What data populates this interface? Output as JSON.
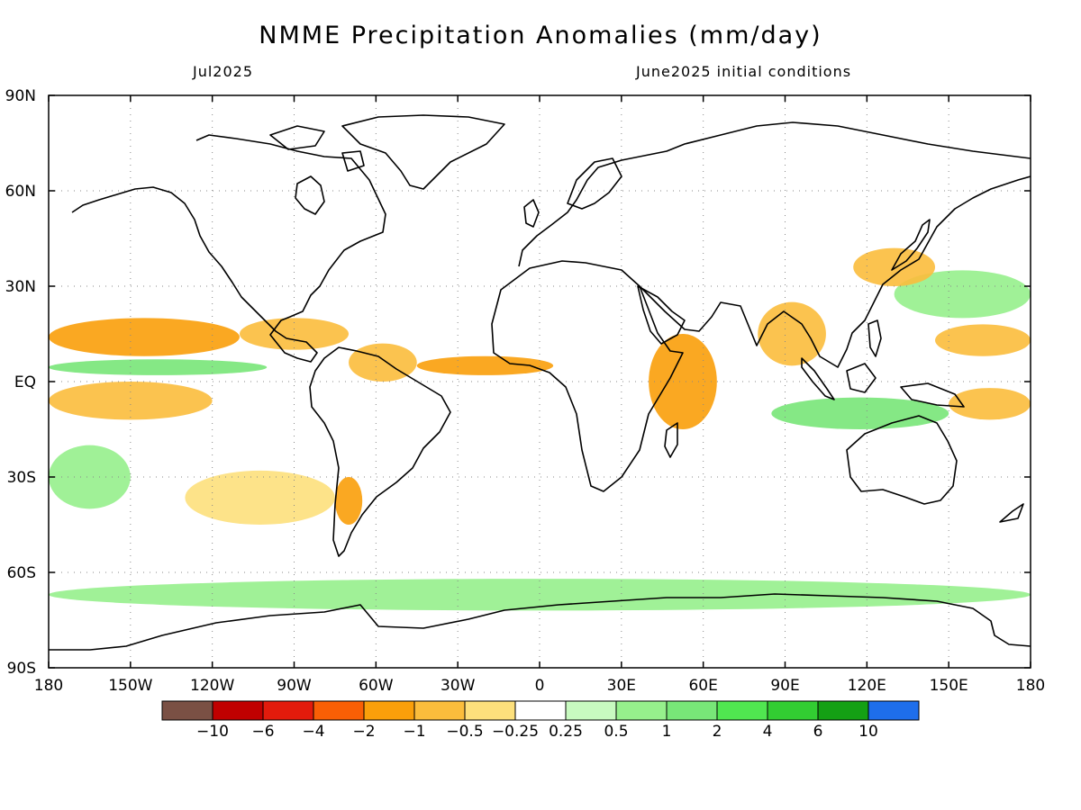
{
  "header": {
    "title": "NMME Precipitation Anomalies (mm/day)",
    "subtitle_left": "Jul2025",
    "subtitle_right": "June2025 initial conditions"
  },
  "map": {
    "lon_range": [
      -180,
      180
    ],
    "lat_range": [
      -90,
      90
    ],
    "x_ticks": [
      {
        "value": -180,
        "label": "180"
      },
      {
        "value": -150,
        "label": "150W"
      },
      {
        "value": -120,
        "label": "120W"
      },
      {
        "value": -90,
        "label": "90W"
      },
      {
        "value": -60,
        "label": "60W"
      },
      {
        "value": -30,
        "label": "30W"
      },
      {
        "value": 0,
        "label": "0"
      },
      {
        "value": 30,
        "label": "30E"
      },
      {
        "value": 60,
        "label": "60E"
      },
      {
        "value": 90,
        "label": "90E"
      },
      {
        "value": 120,
        "label": "120E"
      },
      {
        "value": 150,
        "label": "150E"
      },
      {
        "value": 180,
        "label": "180"
      }
    ],
    "y_ticks": [
      {
        "value": 90,
        "label": "90N"
      },
      {
        "value": 60,
        "label": "60N"
      },
      {
        "value": 30,
        "label": "30N"
      },
      {
        "value": 0,
        "label": "EQ"
      },
      {
        "value": -30,
        "label": "30S"
      },
      {
        "value": -60,
        "label": "60S"
      },
      {
        "value": -90,
        "label": "90S"
      }
    ],
    "grid": "dotted"
  },
  "colorbar": {
    "colors": [
      "#7a5044",
      "#c00000",
      "#e21b0c",
      "#f95f05",
      "#fa9f0a",
      "#fbbd3c",
      "#fde07c",
      "#ffffff",
      "#c8fac0",
      "#96f08c",
      "#78e678",
      "#50e650",
      "#32cd32",
      "#14a014",
      "#1e6eeb"
    ],
    "labels": [
      "-10",
      "-6",
      "-4",
      "-2",
      "-1",
      "-0.5",
      "-0.25",
      "0.25",
      "0.5",
      "1",
      "2",
      "4",
      "6",
      "10"
    ]
  },
  "chart_data": {
    "type": "heatmap",
    "title": "NMME Precipitation Anomalies (mm/day)",
    "variable": "Precipitation Anomalies (mm/day)",
    "legend_placement": "bottom",
    "levels": [
      -10,
      -6,
      -4,
      -2,
      -1,
      -0.5,
      -0.25,
      0.25,
      0.5,
      1,
      2,
      4,
      6,
      10
    ],
    "regions": [
      {
        "lon": [
          -180,
          -110
        ],
        "lat": [
          8,
          20
        ],
        "level": -2
      },
      {
        "lon": [
          -110,
          -70
        ],
        "lat": [
          10,
          20
        ],
        "level": -1
      },
      {
        "lon": [
          -180,
          -120
        ],
        "lat": [
          -12,
          0
        ],
        "level": -1
      },
      {
        "lon": [
          -180,
          -100
        ],
        "lat": [
          2,
          7
        ],
        "level": 1
      },
      {
        "lon": [
          -70,
          -45
        ],
        "lat": [
          0,
          12
        ],
        "level": -1
      },
      {
        "lon": [
          -45,
          5
        ],
        "lat": [
          2,
          8
        ],
        "level": -2
      },
      {
        "lon": [
          40,
          65
        ],
        "lat": [
          -15,
          15
        ],
        "level": -2
      },
      {
        "lon": [
          80,
          105
        ],
        "lat": [
          5,
          25
        ],
        "level": -1
      },
      {
        "lon": [
          145,
          180
        ],
        "lat": [
          8,
          18
        ],
        "level": -1
      },
      {
        "lon": [
          150,
          180
        ],
        "lat": [
          -12,
          -2
        ],
        "level": -1
      },
      {
        "lon": [
          85,
          150
        ],
        "lat": [
          -15,
          -5
        ],
        "level": 1
      },
      {
        "lon": [
          130,
          180
        ],
        "lat": [
          20,
          35
        ],
        "level": 0.5
      },
      {
        "lon": [
          115,
          145
        ],
        "lat": [
          30,
          42
        ],
        "level": -1
      },
      {
        "lon": [
          -130,
          -75
        ],
        "lat": [
          -45,
          -28
        ],
        "level": -0.5
      },
      {
        "lon": [
          -75,
          -65
        ],
        "lat": [
          -45,
          -30
        ],
        "level": -2
      },
      {
        "lon": [
          -180,
          -150
        ],
        "lat": [
          -40,
          -20
        ],
        "level": 0.5
      },
      {
        "lon": [
          -180,
          180
        ],
        "lat": [
          -72,
          -62
        ],
        "level": 0.5
      }
    ]
  }
}
